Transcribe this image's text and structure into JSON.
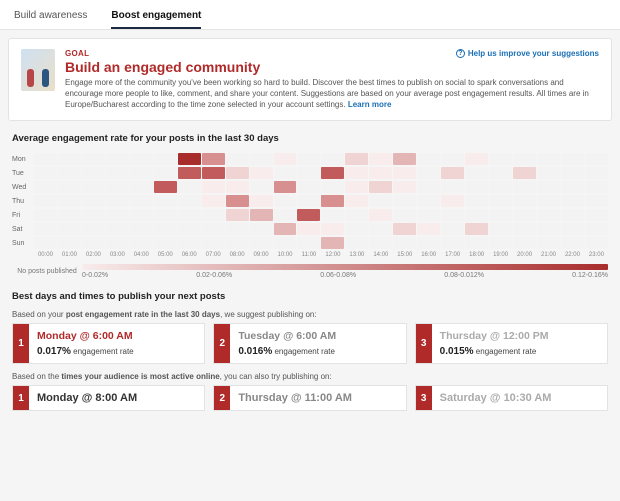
{
  "tabs": [
    {
      "label": "Build awareness",
      "active": false
    },
    {
      "label": "Boost engagement",
      "active": true
    }
  ],
  "help_link": "Help us improve your suggestions",
  "goal": {
    "label": "GOAL",
    "title": "Build an engaged community",
    "description": "Engage more of the community you've been working so hard to build. Discover the best times to publish on social to spark conversations and encourage more people to like, comment, and share your content. Suggestions are based on your average post engagement results. All times are in Europe/Bucharest according to the time zone selected in your account settings.",
    "learn_more": "Learn more"
  },
  "heatmap": {
    "title": "Average engagement rate for your posts in the last 30 days",
    "days": [
      "Mon",
      "Tue",
      "Wed",
      "Thu",
      "Fri",
      "Sat",
      "Sun"
    ],
    "hours": [
      "00:00",
      "01:00",
      "02:00",
      "03:00",
      "04:00",
      "05:00",
      "06:00",
      "07:00",
      "08:00",
      "09:00",
      "10:00",
      "11:00",
      "12:00",
      "13:00",
      "14:00",
      "15:00",
      "16:00",
      "17:00",
      "18:00",
      "19:00",
      "20:00",
      "21:00",
      "22:00",
      "23:00"
    ],
    "empty_color": "#f3f3f3",
    "scale_colors": [
      "#f8ecec",
      "#f0d4d4",
      "#e4b5b5",
      "#d78f8f",
      "#c25b5b",
      "#a82c2c"
    ],
    "cells": [
      [
        0,
        0,
        0,
        0,
        0,
        0,
        6,
        4,
        0,
        0,
        1,
        0,
        0,
        2,
        1,
        3,
        0,
        0,
        1,
        0,
        0,
        0,
        0,
        0
      ],
      [
        0,
        0,
        0,
        0,
        0,
        0,
        5,
        5,
        2,
        1,
        0,
        0,
        5,
        1,
        1,
        1,
        0,
        2,
        0,
        0,
        2,
        0,
        0,
        0
      ],
      [
        0,
        0,
        0,
        0,
        0,
        5,
        0,
        1,
        1,
        0,
        4,
        0,
        0,
        1,
        2,
        1,
        0,
        0,
        0,
        0,
        0,
        0,
        0,
        0
      ],
      [
        0,
        0,
        0,
        0,
        0,
        0,
        0,
        1,
        4,
        1,
        0,
        0,
        4,
        1,
        0,
        0,
        0,
        1,
        0,
        0,
        0,
        0,
        0,
        0
      ],
      [
        0,
        0,
        0,
        0,
        0,
        0,
        0,
        0,
        2,
        3,
        0,
        5,
        0,
        0,
        1,
        0,
        0,
        0,
        0,
        0,
        0,
        0,
        0,
        0
      ],
      [
        0,
        0,
        0,
        0,
        0,
        0,
        0,
        0,
        0,
        0,
        3,
        1,
        1,
        0,
        0,
        2,
        1,
        0,
        2,
        0,
        0,
        0,
        0,
        0
      ],
      [
        0,
        0,
        0,
        0,
        0,
        0,
        0,
        0,
        0,
        0,
        0,
        0,
        3,
        0,
        0,
        0,
        0,
        0,
        0,
        0,
        0,
        0,
        0,
        0
      ]
    ],
    "legend": {
      "no_posts": "No posts published",
      "gradient": [
        "#f8ecec",
        "#a82c2c"
      ],
      "ticks": [
        "0-0.02%",
        "0.02-0.06%",
        "0.06-0.08%",
        "0.08-0.012%",
        "0.12-0.16%"
      ]
    }
  },
  "suggestions": {
    "title": "Best days and times to publish your next posts",
    "engagement_note_pre": "Based on your ",
    "engagement_note_bold": "post engagement rate in the last 30 days",
    "engagement_note_post": ", we suggest publishing on:",
    "engagement": [
      {
        "rank": "1",
        "slot": "Monday  @ 6:00 AM",
        "rate": "0.017%",
        "rate_label": "engagement rate",
        "slot_color": "#b02a2a"
      },
      {
        "rank": "2",
        "slot": "Tuesday  @ 6:00 AM",
        "rate": "0.016%",
        "rate_label": "engagement rate",
        "slot_color": "#888"
      },
      {
        "rank": "3",
        "slot": "Thursday  @ 12:00 PM",
        "rate": "0.015%",
        "rate_label": "engagement rate",
        "slot_color": "#aaa"
      }
    ],
    "audience_note_pre": "Based on the ",
    "audience_note_bold": "times your audience is most active online",
    "audience_note_post": ", you can also try publishing on:",
    "audience": [
      {
        "rank": "1",
        "slot": "Monday  @ 8:00 AM",
        "slot_color": "#333"
      },
      {
        "rank": "2",
        "slot": "Thursday  @ 11:00 AM",
        "slot_color": "#888"
      },
      {
        "rank": "3",
        "slot": "Saturday  @ 10:30 AM",
        "slot_color": "#aaa"
      }
    ]
  }
}
